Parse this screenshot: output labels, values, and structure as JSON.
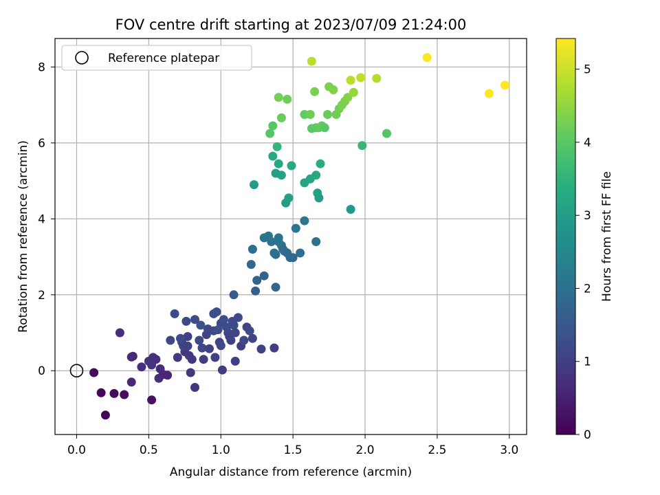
{
  "chart_data": {
    "type": "scatter",
    "title": "FOV centre drift starting at 2023/07/09 21:24:00",
    "xlabel": "Angular distance from reference (arcmin)",
    "ylabel": "Rotation from reference (arcmin)",
    "xlim": [
      -0.15,
      3.12
    ],
    "ylim": [
      -1.68,
      8.75
    ],
    "xticks": [
      0.0,
      0.5,
      1.0,
      1.5,
      2.0,
      2.5,
      3.0
    ],
    "xtick_labels": [
      "0.0",
      "0.5",
      "1.0",
      "1.5",
      "2.0",
      "2.5",
      "3.0"
    ],
    "yticks": [
      0,
      2,
      4,
      6,
      8
    ],
    "ytick_labels": [
      "0",
      "2",
      "4",
      "6",
      "8"
    ],
    "grid": true,
    "legend": {
      "placement": "top-left",
      "entries": [
        "Reference platepar"
      ]
    },
    "colorbar": {
      "label": "Hours from first FF file",
      "min": 0,
      "max": 5.42,
      "ticks": [
        0,
        1,
        2,
        3,
        4,
        5
      ],
      "tick_labels": [
        "0",
        "1",
        "2",
        "3",
        "4",
        "5"
      ],
      "colormap": "viridis"
    },
    "reference_point": {
      "x": 0.0,
      "y": 0.0
    },
    "series": [
      {
        "x": [
          0.12,
          0.17,
          0.2,
          0.26,
          0.33,
          0.38,
          0.52,
          0.3,
          0.39,
          0.38,
          0.45,
          0.5,
          0.53,
          0.55,
          0.57,
          0.58,
          0.6,
          0.63,
          0.65,
          0.7,
          0.73,
          0.75,
          0.77,
          0.78,
          0.8,
          0.52,
          0.68,
          0.72,
          0.74,
          0.76,
          0.77,
          0.79,
          0.82,
          0.85,
          0.87,
          0.88,
          0.9,
          0.92,
          0.95,
          0.97,
          0.99,
          1.0,
          1.02,
          1.04,
          1.05,
          1.06,
          1.07,
          1.08,
          1.09,
          1.1,
          1.12,
          1.14,
          1.16,
          1.18,
          1.2,
          1.22,
          1.28,
          1.37,
          0.82,
          0.91,
          0.96,
          1.01,
          1.1,
          0.86,
          0.95,
          0.98,
          1.0,
          1.09,
          1.21,
          1.22,
          1.24,
          1.25,
          1.3,
          1.3,
          1.33,
          1.35,
          1.37,
          1.38,
          1.4,
          1.42,
          1.43,
          1.44,
          1.46,
          1.48,
          1.5,
          1.52,
          1.55,
          1.58,
          1.66,
          1.38,
          1.4,
          1.23,
          1.36,
          1.38,
          1.4,
          1.42,
          1.45,
          1.47,
          1.49,
          1.58,
          1.62,
          1.66,
          1.67,
          1.68,
          1.69,
          1.9,
          1.98,
          1.34,
          1.36,
          1.39,
          1.42,
          1.4,
          1.46,
          1.58,
          1.62,
          1.63,
          1.65,
          1.66,
          1.68,
          1.7,
          1.72,
          1.74,
          1.75,
          1.78,
          1.8,
          1.82,
          1.84,
          1.86,
          1.88,
          1.9,
          1.92,
          2.15,
          1.63,
          1.9,
          1.97,
          2.08,
          2.43,
          2.86,
          2.97
        ],
        "y": [
          -0.05,
          -0.58,
          -1.17,
          -0.6,
          -0.63,
          -0.3,
          -0.77,
          1.0,
          0.38,
          0.36,
          0.1,
          0.25,
          0.35,
          0.3,
          -0.2,
          0.05,
          -0.1,
          -0.12,
          0.8,
          0.35,
          0.75,
          0.5,
          0.9,
          0.4,
          0.3,
          0.15,
          1.5,
          0.85,
          0.65,
          1.3,
          0.65,
          -0.05,
          1.35,
          0.8,
          0.6,
          0.3,
          0.95,
          0.58,
          1.05,
          1.55,
          0.75,
          1.25,
          1.35,
          1.15,
          1.0,
          0.9,
          0.8,
          1.3,
          1.2,
          1.0,
          1.4,
          0.65,
          0.8,
          1.15,
          1.05,
          0.85,
          0.57,
          0.6,
          -0.44,
          1.1,
          0.35,
          0.02,
          0.25,
          1.2,
          1.5,
          1.08,
          0.66,
          2.0,
          2.8,
          3.2,
          2.1,
          2.38,
          2.5,
          3.5,
          3.55,
          3.4,
          3.1,
          3.06,
          3.5,
          3.3,
          3.2,
          3.15,
          3.1,
          2.98,
          2.98,
          3.75,
          3.1,
          3.95,
          3.4,
          2.2,
          3.4,
          4.9,
          5.65,
          5.2,
          5.45,
          5.15,
          4.42,
          4.55,
          5.4,
          4.95,
          5.05,
          5.15,
          4.68,
          4.55,
          5.45,
          4.25,
          5.93,
          6.25,
          6.45,
          5.9,
          6.66,
          7.2,
          7.15,
          6.75,
          6.75,
          6.38,
          7.35,
          6.4,
          6.4,
          6.45,
          6.4,
          6.75,
          7.48,
          7.4,
          6.75,
          6.9,
          7.0,
          7.1,
          7.2,
          7.65,
          7.33,
          6.25,
          8.15,
          7.65,
          7.72,
          7.7,
          8.25,
          7.3,
          7.52
        ],
        "hours": [
          0.12,
          0.1,
          0.05,
          0.15,
          0.18,
          0.6,
          0.3,
          0.7,
          0.6,
          0.65,
          0.7,
          0.75,
          0.78,
          0.72,
          0.68,
          0.66,
          0.62,
          0.58,
          1.15,
          0.9,
          0.95,
          0.85,
          1.05,
          0.92,
          0.88,
          0.8,
          1.25,
          1.2,
          1.1,
          1.15,
          1.05,
          0.85,
          1.25,
          1.2,
          1.15,
          0.95,
          1.1,
          1.05,
          1.2,
          1.3,
          1.1,
          1.2,
          1.3,
          1.25,
          1.15,
          1.1,
          1.05,
          1.2,
          1.25,
          1.1,
          1.2,
          1.0,
          1.15,
          1.1,
          1.2,
          1.1,
          1.05,
          1.0,
          0.85,
          1.15,
          1.05,
          0.95,
          1.0,
          1.35,
          1.3,
          1.3,
          1.2,
          1.55,
          1.8,
          1.95,
          1.6,
          1.7,
          1.75,
          2.05,
          2.1,
          2.05,
          2.0,
          1.95,
          2.05,
          2.0,
          1.95,
          1.9,
          1.85,
          1.8,
          1.85,
          2.1,
          1.95,
          2.15,
          2.05,
          1.75,
          2.05,
          2.95,
          3.25,
          3.05,
          3.2,
          3.1,
          3.0,
          3.05,
          3.3,
          3.15,
          3.2,
          3.25,
          3.05,
          3.0,
          3.35,
          2.9,
          3.6,
          4.0,
          4.0,
          3.55,
          4.15,
          4.25,
          4.2,
          4.1,
          4.2,
          4.05,
          4.3,
          4.05,
          4.1,
          4.1,
          4.0,
          4.15,
          4.35,
          4.35,
          4.2,
          4.25,
          4.3,
          4.3,
          4.4,
          4.75,
          4.55,
          3.95,
          4.85,
          4.85,
          4.9,
          4.8,
          5.45,
          5.42,
          5.4
        ]
      }
    ]
  }
}
